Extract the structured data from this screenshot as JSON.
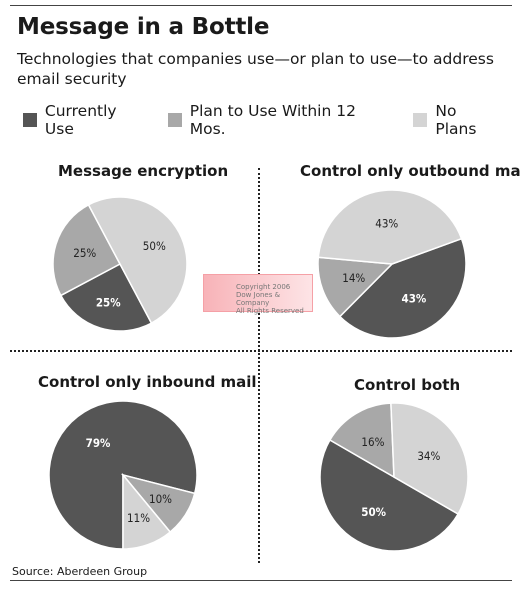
{
  "header": {
    "title": "Message in a Bottle",
    "subtitle": "Technologies that companies use—or plan to use—to address email security"
  },
  "legend": [
    {
      "label": "Currently Use",
      "color": "#555555"
    },
    {
      "label": "Plan to Use Within 12 Mos.",
      "color": "#a8a8a8"
    },
    {
      "label": "No Plans",
      "color": "#d4d4d4"
    }
  ],
  "watermark": {
    "lines": [
      "Copyright 2006",
      "Dow Jones & Company",
      "All Rights Reserved"
    ]
  },
  "source": "Source: Aberdeen Group",
  "chart_data": [
    {
      "type": "pie",
      "title": "Message encryption",
      "categories": [
        "Currently Use",
        "Plan to Use Within 12 Mos.",
        "No Plans"
      ],
      "values": [
        25,
        25,
        50
      ],
      "labels": [
        "25%",
        "25%",
        "50%"
      ]
    },
    {
      "type": "pie",
      "title": "Control only outbound mail",
      "categories": [
        "Currently Use",
        "Plan to Use Within 12 Mos.",
        "No Plans"
      ],
      "values": [
        43,
        14,
        43
      ],
      "labels": [
        "43%",
        "14%",
        "43%"
      ]
    },
    {
      "type": "pie",
      "title": "Control only inbound mail",
      "categories": [
        "Currently Use",
        "Plan to Use Within 12 Mos.",
        "No Plans"
      ],
      "values": [
        79,
        10,
        11
      ],
      "labels": [
        "79%",
        "10%",
        "11%"
      ]
    },
    {
      "type": "pie",
      "title": "Control both",
      "categories": [
        "Currently Use",
        "Plan to Use Within 12 Mos.",
        "No Plans"
      ],
      "values": [
        50,
        16,
        34
      ],
      "labels": [
        "50%",
        "16%",
        "34%"
      ]
    }
  ]
}
